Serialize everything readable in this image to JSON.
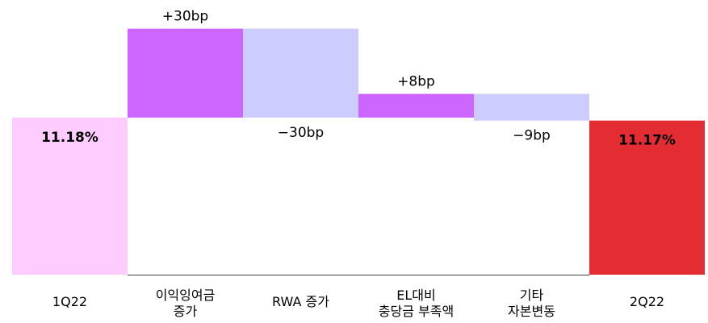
{
  "chart_data": {
    "type": "bar",
    "subtype": "waterfall",
    "categories": [
      [
        "1Q22"
      ],
      [
        "이익잉여금",
        "증가"
      ],
      [
        "RWA 증가"
      ],
      [
        "EL대비",
        "충당금 부족액"
      ],
      [
        "기타",
        "자본변동"
      ],
      [
        "2Q22"
      ]
    ],
    "steps": [
      {
        "kind": "total",
        "value": 11.18,
        "label": "11.18%",
        "color": "#FFCCFF",
        "label_color": "#000000",
        "label_bold": true
      },
      {
        "kind": "delta",
        "value": 0.3,
        "label": "+30bp",
        "color": "#CC66FF"
      },
      {
        "kind": "delta",
        "value": -0.3,
        "label": "−30bp",
        "color": "#CCCCFF"
      },
      {
        "kind": "delta",
        "value": 0.08,
        "label": "+8bp",
        "color": "#CC66FF"
      },
      {
        "kind": "delta",
        "value": -0.09,
        "label": "−9bp",
        "color": "#CCCCFF"
      },
      {
        "kind": "total",
        "value": 11.17,
        "label": "11.17%",
        "color": "#E32D33",
        "label_color": "#FFFFFF",
        "label_bold": true
      }
    ],
    "units": {
      "total": "%",
      "delta": "bp"
    },
    "axis_line_color": "#404040",
    "ylim_scale_note": ""
  }
}
